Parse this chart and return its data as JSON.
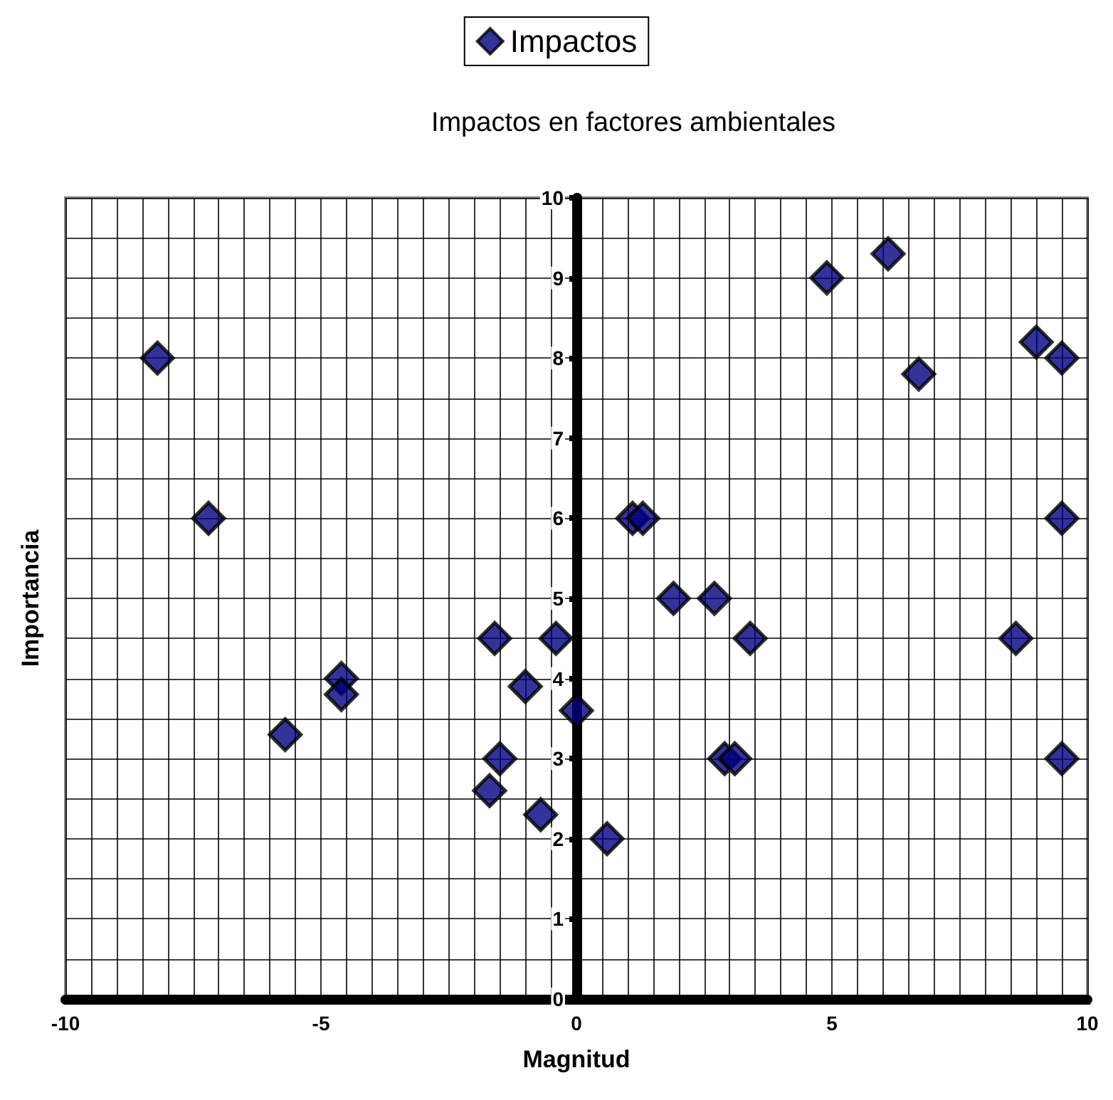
{
  "chart_data": {
    "type": "scatter",
    "title": "Impactos en factores ambientales",
    "xlabel": "Magnitud",
    "ylabel": "Importancia",
    "legend": "top",
    "marker": "diamond",
    "grid": true,
    "xlim": [
      -10,
      10
    ],
    "xticks": [
      -10,
      -5,
      0,
      5,
      10
    ],
    "ylim": [
      0,
      10
    ],
    "yticks": [
      0,
      1,
      2,
      3,
      4,
      5,
      6,
      7,
      8,
      9,
      10
    ],
    "series": [
      {
        "name": "Impactos",
        "color": "#000080",
        "x": [
          -8.2,
          -7.2,
          -5.7,
          -4.6,
          -4.6,
          -1.6,
          -1.0,
          -0.4,
          -1.5,
          -1.7,
          -0.7,
          0,
          0.6,
          1.1,
          1.3,
          1.9,
          2.7,
          3.4,
          2.9,
          3.1,
          4.9,
          6.1,
          6.7,
          9.0,
          9.5,
          9.5,
          8.6,
          9.5
        ],
        "values": [
          8,
          6,
          3.3,
          4,
          3.8,
          4.5,
          3.9,
          4.5,
          3,
          2.6,
          2.3,
          3.6,
          2,
          6,
          6,
          5,
          5,
          4.5,
          3,
          3,
          9,
          9.3,
          7.8,
          8.2,
          8,
          6,
          4.5,
          3
        ]
      }
    ]
  }
}
